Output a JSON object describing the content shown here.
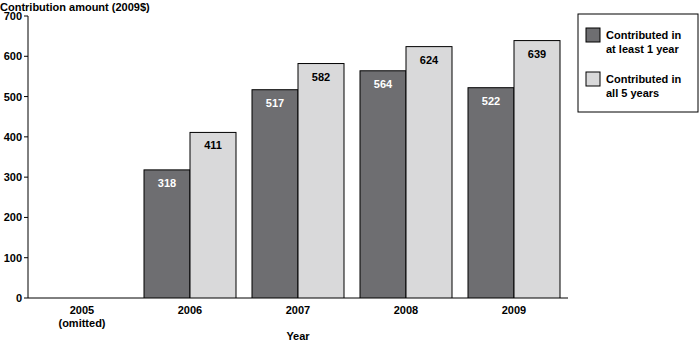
{
  "chart_data": {
    "type": "bar",
    "y_label": "Contribution amount (2009$)",
    "x_label": "Year",
    "categories": [
      "2005\n(omitted)",
      "2006",
      "2007",
      "2008",
      "2009"
    ],
    "series": [
      {
        "name": "Contributed in at least 1 year",
        "color": "#6e6e71",
        "values": [
          null,
          318,
          517,
          564,
          522
        ]
      },
      {
        "name": "Contributed in all 5 years",
        "color": "#d9d9da",
        "values": [
          null,
          411,
          582,
          624,
          639
        ]
      }
    ],
    "ylim": [
      0,
      700
    ],
    "yticks": [
      0,
      100,
      200,
      300,
      400,
      500,
      600,
      700
    ],
    "grid": false,
    "legend": "right",
    "data_labels": true
  }
}
